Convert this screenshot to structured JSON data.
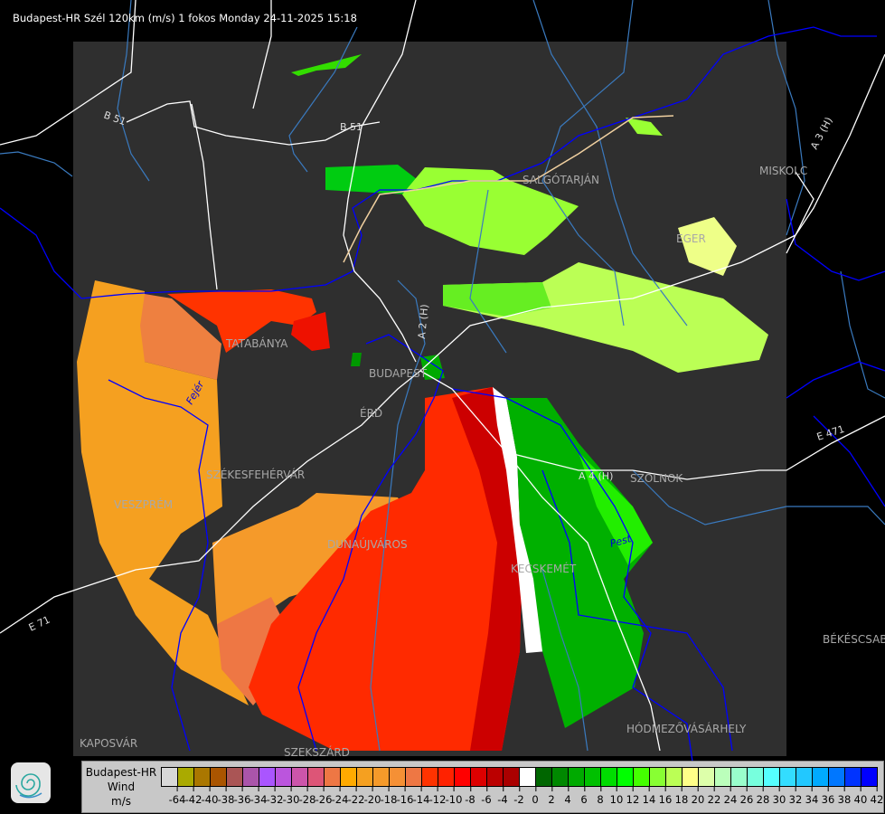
{
  "title": "Budapest-HR Szél 120km (m/s) 1 fokos Monday 24-11-2025 15:18",
  "map": {
    "panel_color": "#2f2f2f",
    "river_color": "#3a7abf",
    "border_color": "#0000ff",
    "road_color": "#ffffff",
    "cities": [
      "SALGÓTARJÁN",
      "EGER",
      "MISKOLC",
      "TATABÁNYA",
      "BUDAPEST",
      "ÉRD",
      "SZÉKESFEHÉRVÁR",
      "VESZPRÉM",
      "DUNAÚJVÁROS",
      "KECSKEMÉT",
      "SZOLNOK",
      "BÉKÉSCSABA",
      "HÓDMEZŐVÁSÁRHELY",
      "KAPOSVÁR",
      "SZEKSZÁRD"
    ],
    "roads": [
      "B 51",
      "B 51",
      "A 2 (H)",
      "A 3 (H)",
      "A 4 (H)",
      "E 471",
      "E 71"
    ],
    "counties": [
      "Fejér",
      "Pest"
    ]
  },
  "legend": {
    "radar": "Budapest-HR",
    "quantity": "Wind",
    "unit": "m/s",
    "colors": [
      "#d8d8d8",
      "#aaaa00",
      "#aa7700",
      "#aa5500",
      "#aa5555",
      "#aa55aa",
      "#aa55ff",
      "#bb55dd",
      "#cc55aa",
      "#dd5577",
      "#ee7744",
      "#ffaa00",
      "#f5a020",
      "#f59a2a",
      "#f59035",
      "#ee7744",
      "#ff3300",
      "#ff2200",
      "#ff0000",
      "#dd0000",
      "#bb0000",
      "#aa0000",
      "#ffffff",
      "#006600",
      "#008800",
      "#00aa00",
      "#00c000",
      "#00dd00",
      "#00ff00",
      "#44ff00",
      "#88ff33",
      "#bbff55",
      "#ffff88",
      "#ddffaa",
      "#bbffbb",
      "#99ffcc",
      "#77ffdd",
      "#55ffff",
      "#33ddff",
      "#22c8ff",
      "#00aaff",
      "#0077ff",
      "#0033ff",
      "#0000ff"
    ],
    "labels": [
      "-64",
      "-42",
      "-40",
      "-38",
      "-36",
      "-34",
      "-32",
      "-30",
      "-28",
      "-26",
      "-24",
      "-22",
      "-20",
      "-18",
      "-16",
      "-14",
      "-12",
      "-10",
      "-8",
      "-6",
      "-4",
      "-2",
      "0",
      "2",
      "4",
      "6",
      "8",
      "10",
      "12",
      "14",
      "16",
      "18",
      "20",
      "22",
      "24",
      "26",
      "28",
      "30",
      "32",
      "34",
      "36",
      "38",
      "40",
      "42"
    ]
  },
  "logo": {
    "icon": "spiral-logo-icon"
  }
}
